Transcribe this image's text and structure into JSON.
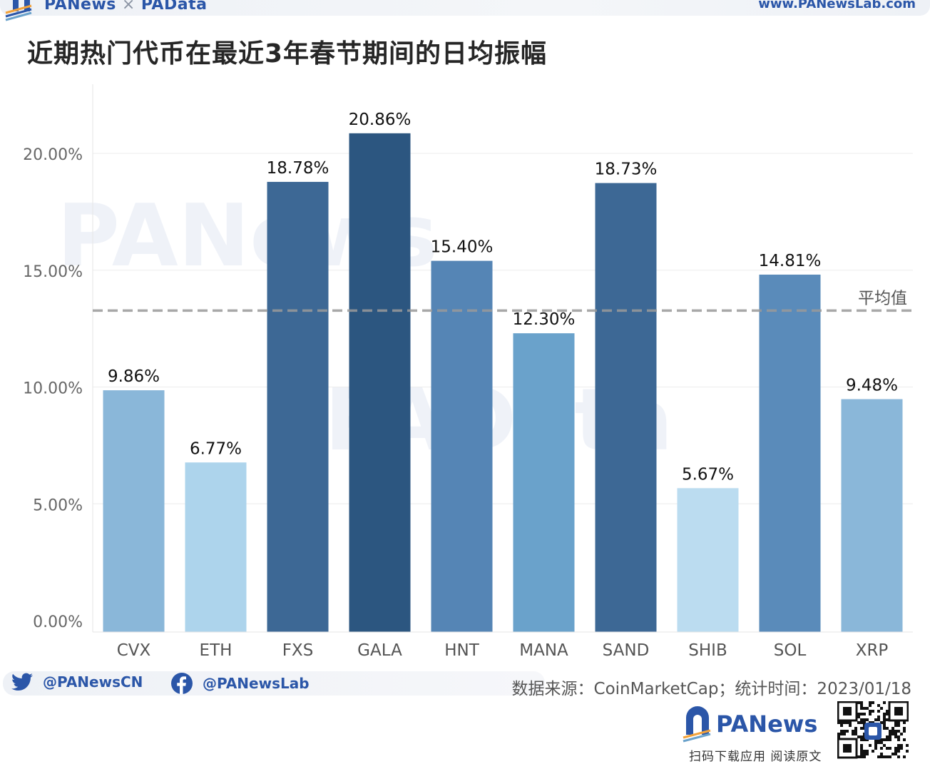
{
  "header": {
    "brand_left": "PANews",
    "brand_sep": "×",
    "brand_right": "PAData",
    "site": "www.PANewsLab.com"
  },
  "title": "近期热门代币在最近3年春节期间的日均振幅",
  "chart_data": {
    "type": "bar",
    "categories": [
      "CVX",
      "ETH",
      "FXS",
      "GALA",
      "HNT",
      "MANA",
      "SAND",
      "SHIB",
      "SOL",
      "XRP"
    ],
    "values": [
      9.86,
      6.77,
      18.78,
      20.86,
      15.4,
      12.3,
      18.73,
      5.67,
      14.81,
      9.48
    ],
    "value_labels": [
      "9.86%",
      "6.77%",
      "18.78%",
      "20.86%",
      "15.40%",
      "12.30%",
      "18.73%",
      "5.67%",
      "14.81%",
      "9.48%"
    ],
    "bar_colors": [
      "#8ab7d9",
      "#add4ec",
      "#3d6895",
      "#2c5680",
      "#5585b5",
      "#6aa2cb",
      "#3d6895",
      "#bbdcf0",
      "#5a8bba",
      "#8ab7d9"
    ],
    "y_ticks": [
      0,
      5,
      10,
      15,
      20
    ],
    "y_tick_labels": [
      "0.00%",
      "5.00%",
      "10.00%",
      "15.00%",
      "20.00%"
    ],
    "ylim": [
      0,
      22
    ],
    "grid": true,
    "reference_line": {
      "value": 13.27,
      "label": "平均值",
      "color": "#9a9a9a"
    }
  },
  "footer": {
    "twitter": "@PANewsCN",
    "facebook": "@PANewsLab",
    "source": "数据来源：CoinMarketCap；统计时间：2023/01/18",
    "app_name": "PANews",
    "app_cta": "扫码下载应用 阅读原文"
  },
  "colors": {
    "brand": "#2b56a8",
    "accent_orange": "#f2a23a"
  }
}
